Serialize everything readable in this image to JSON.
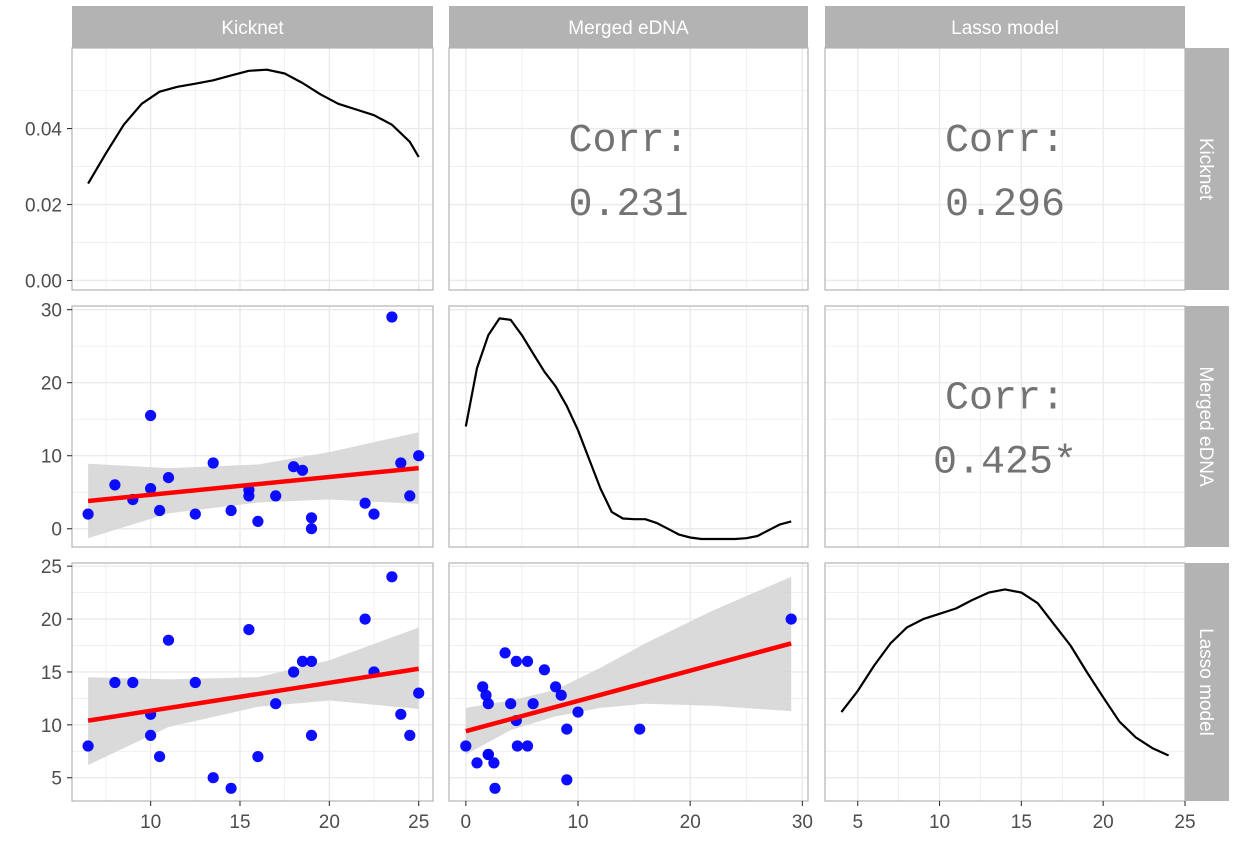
{
  "variables": [
    "Kicknet",
    "Merged eDNA",
    "Lasso model"
  ],
  "colors": {
    "strip": "#b3b3b3",
    "points": "#0000ff",
    "fit_line": "#ff0000",
    "ribbon": "#d6d6d6",
    "grid": "#ebebeb",
    "panel_border": "#b3b3b3",
    "density_line": "#000000",
    "corr_text": "#737373"
  },
  "x_axes": [
    {
      "ticks": [
        10,
        15,
        20,
        25
      ],
      "range": [
        5.6,
        25.8
      ]
    },
    {
      "ticks": [
        0,
        10,
        20,
        30
      ],
      "range": [
        -1.5,
        30.5
      ]
    },
    {
      "ticks": [
        5,
        10,
        15,
        20,
        25
      ],
      "range": [
        3.0,
        25.0
      ]
    }
  ],
  "y_axes": [
    {
      "ticks": [
        "0.00",
        "0.02",
        "0.04"
      ],
      "tick_values": [
        0,
        0.02,
        0.04
      ],
      "range": [
        -0.0025,
        0.0612
      ]
    },
    {
      "ticks": [
        "0",
        "10",
        "20",
        "30"
      ],
      "tick_values": [
        0,
        10,
        20,
        30
      ],
      "range": [
        -2.5,
        30.5
      ]
    },
    {
      "ticks": [
        "5",
        "10",
        "15",
        "20",
        "25"
      ],
      "tick_values": [
        5,
        10,
        15,
        20,
        25
      ],
      "range": [
        2.8,
        25.3
      ]
    }
  ],
  "correlations": [
    {
      "row": 0,
      "col": 1,
      "label": "Corr:",
      "value": "0.231"
    },
    {
      "row": 0,
      "col": 2,
      "label": "Corr:",
      "value": "0.296"
    },
    {
      "row": 1,
      "col": 2,
      "label": "Corr:",
      "value": "0.425*"
    }
  ],
  "chart_data": [
    {
      "type": "line",
      "panel": "Kicknet density",
      "x": [
        6.5,
        7.5,
        8.5,
        9.5,
        10.5,
        11.5,
        12.5,
        13.5,
        14.5,
        15.5,
        16.5,
        17.5,
        18.5,
        19.5,
        20.5,
        21.5,
        22.5,
        23.5,
        24.5,
        25.0
      ],
      "y": [
        0.0255,
        0.0335,
        0.041,
        0.0465,
        0.0497,
        0.051,
        0.0518,
        0.0527,
        0.054,
        0.0552,
        0.0555,
        0.0545,
        0.052,
        0.049,
        0.0465,
        0.045,
        0.0435,
        0.041,
        0.0365,
        0.0325
      ]
    },
    {
      "type": "line",
      "panel": "Merged eDNA density",
      "x": [
        0,
        1,
        2,
        3,
        4,
        5,
        6,
        7,
        8,
        9,
        10,
        11,
        12,
        13,
        14,
        15,
        16,
        17,
        18,
        19,
        20,
        21,
        22,
        23,
        24,
        25,
        26,
        27,
        28,
        29
      ],
      "y": [
        14,
        22,
        26.5,
        28.8,
        28.6,
        26.5,
        24,
        21.5,
        19.5,
        16.8,
        13.5,
        9.5,
        5.5,
        2.3,
        1.4,
        1.3,
        1.3,
        0.8,
        0.0,
        -0.8,
        -1.2,
        -1.4,
        -1.4,
        -1.4,
        -1.4,
        -1.3,
        -1.0,
        -0.2,
        0.6,
        1.0
      ]
    },
    {
      "type": "line",
      "panel": "Lasso model density",
      "x": [
        4,
        5,
        6,
        7,
        8,
        9,
        10,
        11,
        12,
        13,
        14,
        15,
        16,
        17,
        18,
        19,
        20,
        21,
        22,
        23,
        24
      ],
      "y": [
        11.2,
        13.2,
        15.6,
        17.7,
        19.2,
        20.0,
        20.5,
        21.0,
        21.8,
        22.5,
        22.8,
        22.5,
        21.5,
        19.5,
        17.5,
        15.0,
        12.6,
        10.3,
        8.8,
        7.8,
        7.1
      ]
    },
    {
      "type": "scatter",
      "panel": "Merged eDNA vs Kicknet",
      "x": [
        6.5,
        8,
        9,
        10,
        10,
        10.5,
        11,
        12.5,
        13.5,
        14.5,
        15.5,
        15.5,
        16,
        17,
        18,
        18.5,
        19,
        19,
        22,
        22.5,
        23.5,
        24,
        24.5,
        25
      ],
      "y": [
        2,
        6,
        4,
        15.5,
        5.5,
        2.5,
        7,
        2,
        9,
        2.5,
        4.5,
        5.3,
        1,
        4.5,
        8.5,
        8,
        1.5,
        0,
        3.5,
        2,
        29,
        9,
        4.5,
        10
      ],
      "fit": {
        "x": [
          6.5,
          25
        ],
        "y": [
          3.8,
          8.3
        ]
      },
      "ribbon": {
        "x": [
          6.5,
          11,
          16,
          20,
          25
        ],
        "lower": [
          -1.3,
          2.1,
          3.6,
          4.0,
          3.4
        ],
        "upper": [
          8.9,
          8.3,
          8.8,
          10.5,
          13.2
        ]
      }
    },
    {
      "type": "scatter",
      "panel": "Lasso model vs Kicknet",
      "x": [
        6.5,
        8,
        9,
        10,
        10,
        10.5,
        11,
        12.5,
        13.5,
        14.5,
        15.5,
        16,
        17,
        18,
        18.5,
        19,
        19,
        22,
        22.5,
        23.5,
        24,
        24.5,
        25
      ],
      "y": [
        8,
        14,
        14,
        11,
        9,
        7,
        18,
        14,
        5,
        4,
        19,
        7,
        12,
        15,
        16,
        16,
        9,
        20,
        15,
        24,
        11,
        9,
        13
      ],
      "fit": {
        "x": [
          6.5,
          25
        ],
        "y": [
          10.4,
          15.3
        ]
      },
      "ribbon": {
        "x": [
          6.5,
          11,
          16,
          20,
          25
        ],
        "lower": [
          6.2,
          9.8,
          11.7,
          12.3,
          11.5
        ],
        "upper": [
          14.5,
          14.3,
          14.5,
          16.1,
          19.2
        ]
      }
    },
    {
      "type": "scatter",
      "panel": "Lasso model vs Merged eDNA",
      "x": [
        0,
        1,
        1.5,
        1.8,
        2,
        2,
        2,
        2.5,
        2.6,
        3.5,
        4,
        4.5,
        4.5,
        4.6,
        5.5,
        5.5,
        6,
        7,
        8,
        8.5,
        9,
        9,
        10,
        15.5,
        29
      ],
      "y": [
        8,
        6.4,
        13.6,
        12.8,
        12,
        7.2,
        7.2,
        6.4,
        4,
        16.8,
        12,
        16,
        10.4,
        8,
        16,
        8,
        12,
        15.2,
        13.6,
        12.8,
        9.6,
        4.8,
        11.2,
        9.6,
        20
      ],
      "fit": {
        "x": [
          0,
          29
        ],
        "y": [
          9.4,
          17.7
        ]
      },
      "ribbon": {
        "x": [
          0,
          4,
          8,
          12,
          16,
          22,
          29
        ],
        "lower": [
          7.2,
          9.5,
          10.8,
          11.6,
          12.0,
          11.8,
          11.3
        ],
        "upper": [
          11.6,
          12.3,
          13.3,
          15.4,
          17.7,
          20.8,
          24.0
        ]
      }
    }
  ]
}
